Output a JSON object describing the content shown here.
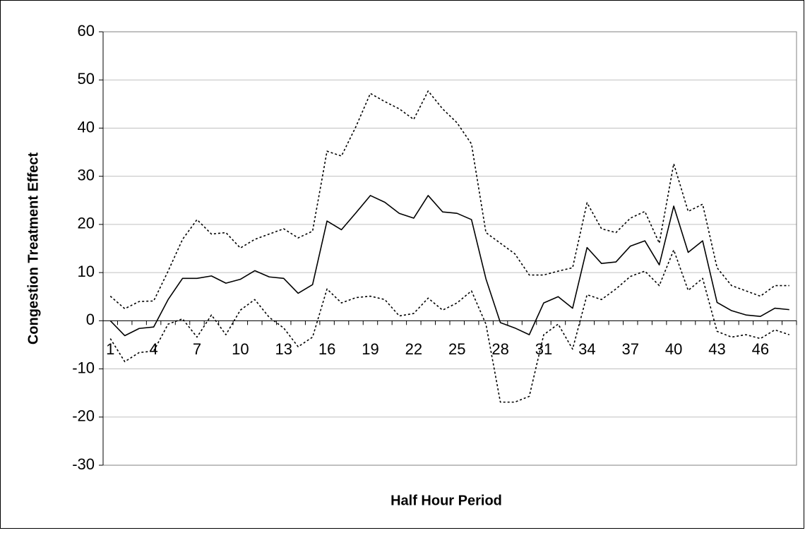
{
  "chart_data": {
    "type": "line",
    "x_label": "Half Hour Period",
    "y_label": "Congestion Treatment Effect",
    "categories": [
      "1",
      null,
      null,
      "4",
      null,
      null,
      "7",
      null,
      null,
      "10",
      null,
      null,
      "13",
      null,
      null,
      "16",
      null,
      null,
      "19",
      null,
      null,
      "22",
      null,
      null,
      "25",
      null,
      null,
      "28",
      null,
      null,
      "31",
      null,
      null,
      "34",
      null,
      null,
      "37",
      null,
      null,
      "40",
      null,
      null,
      "43",
      null,
      null,
      "46",
      null,
      null
    ],
    "series": [
      {
        "color": "#000000",
        "style": "solid",
        "values": [
          0,
          -3.1,
          -1.6,
          -1.3,
          4.4,
          8.8,
          8.8,
          9.3,
          7.8,
          8.6,
          10.4,
          9.1,
          8.8,
          5.7,
          7.5,
          20.7,
          18.9,
          22.4,
          26.0,
          24.6,
          22.3,
          21.3,
          26.0,
          22.6,
          22.3,
          21.0,
          8.7,
          -0.4,
          -1.5,
          -2.9,
          3.7,
          5.0,
          2.6,
          15.2,
          11.9,
          12.2,
          15.5,
          16.6,
          11.6,
          23.8,
          14.2,
          16.6,
          3.8,
          2.1,
          1.2,
          0.9,
          2.6,
          2.3
        ]
      },
      {
        "color": "#000000",
        "style": "dotted",
        "values": [
          5.1,
          2.5,
          4.0,
          4.1,
          10.3,
          16.9,
          21.0,
          18.0,
          18.3,
          15.1,
          16.9,
          18.0,
          19.1,
          17.2,
          18.6,
          35.2,
          34.2,
          40.3,
          47.2,
          45.5,
          44.0,
          41.8,
          47.7,
          44.0,
          41.1,
          36.7,
          18.3,
          16.1,
          13.9,
          9.5,
          9.5,
          10.3,
          11.0,
          24.5,
          19.1,
          18.3,
          21.3,
          22.7,
          16.1,
          32.6,
          22.7,
          24.2,
          11.0,
          7.3,
          6.2,
          5.1,
          7.3,
          7.3
        ]
      },
      {
        "color": "#000000",
        "style": "dotted",
        "values": [
          -3.7,
          -8.5,
          -6.6,
          -6.3,
          -0.7,
          0.4,
          -3.4,
          1.2,
          -2.9,
          2.2,
          4.4,
          0.7,
          -1.5,
          -5.4,
          -3.4,
          6.6,
          3.7,
          4.8,
          5.1,
          4.4,
          1.0,
          1.5,
          4.7,
          2.2,
          3.7,
          6.2,
          -0.7,
          -16.9,
          -16.9,
          -15.7,
          -2.9,
          -0.7,
          -5.9,
          5.4,
          4.4,
          6.6,
          9.2,
          10.3,
          7.3,
          14.7,
          6.3,
          8.8,
          -2.2,
          -3.4,
          -2.9,
          -3.7,
          -1.9,
          -2.9
        ]
      }
    ],
    "ylim": [
      -30,
      60
    ],
    "yticks": [
      -30,
      -20,
      -10,
      0,
      10,
      20,
      30,
      40,
      50,
      60
    ],
    "grid": true
  }
}
